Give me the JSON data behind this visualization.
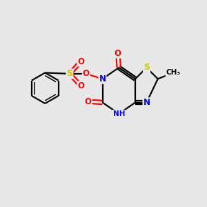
{
  "bg_color": "#e8e8e8",
  "bond_color": "#000000",
  "atom_colors": {
    "S": "#cccc00",
    "N": "#0000ff",
    "O": "#ff0000",
    "C": "#000000",
    "H": "#40c0c0"
  },
  "figsize": [
    3.0,
    3.0
  ],
  "dpi": 100,
  "xlim": [
    0,
    10
  ],
  "ylim": [
    0,
    10
  ]
}
